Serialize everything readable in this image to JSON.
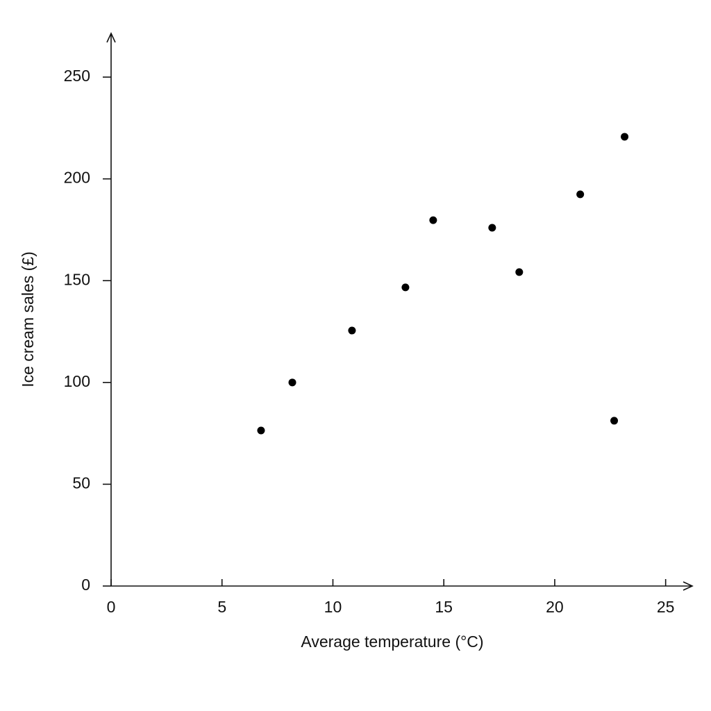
{
  "chart_data": {
    "type": "scatter",
    "xlabel": "Average  temperature (°C)",
    "ylabel": "Ice cream sales (£)",
    "x": [
      6.76,
      8.17,
      10.86,
      13.27,
      14.52,
      17.18,
      18.4,
      21.15,
      23.15,
      22.68
    ],
    "values": [
      76.4,
      100,
      125.5,
      146.7,
      179.7,
      176,
      154.2,
      192.4,
      220.7,
      81.2
    ],
    "color": "#000000",
    "xlim": [
      0,
      26.2
    ],
    "ylim": [
      0,
      271.5
    ],
    "xticks": [
      0,
      5,
      10,
      15,
      20,
      25
    ],
    "yticks": [
      0,
      50,
      100,
      150,
      200,
      250
    ],
    "grid": false
  }
}
